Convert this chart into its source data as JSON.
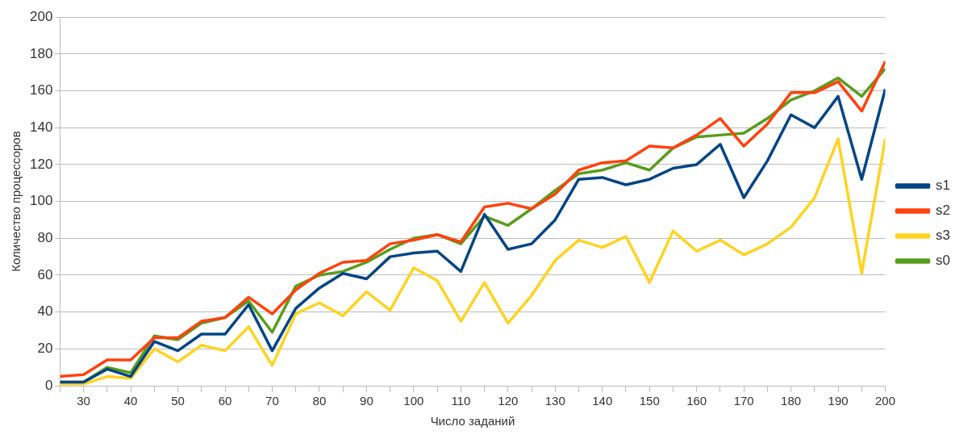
{
  "chart_data": {
    "type": "line",
    "xlabel": "Число заданий",
    "ylabel": "Количество процессоров",
    "x": [
      25,
      30,
      35,
      40,
      45,
      50,
      55,
      60,
      65,
      70,
      75,
      80,
      85,
      90,
      95,
      100,
      105,
      110,
      115,
      120,
      125,
      130,
      135,
      140,
      145,
      150,
      155,
      160,
      165,
      170,
      175,
      180,
      185,
      190,
      195,
      200
    ],
    "xlim": [
      25,
      200
    ],
    "xticks": [
      {
        "value": 25,
        "label": null
      },
      30,
      {
        "value": 35,
        "label": null
      },
      40,
      {
        "value": 45,
        "label": null
      },
      50,
      {
        "value": 55,
        "label": null
      },
      60,
      {
        "value": 65,
        "label": null
      },
      70,
      {
        "value": 75,
        "label": null
      },
      80,
      {
        "value": 85,
        "label": null
      },
      90,
      {
        "value": 95,
        "label": null
      },
      100,
      {
        "value": 105,
        "label": null
      },
      110,
      {
        "value": 115,
        "label": null
      },
      120,
      {
        "value": 125,
        "label": null
      },
      130,
      {
        "value": 135,
        "label": null
      },
      140,
      {
        "value": 145,
        "label": null
      },
      150,
      {
        "value": 155,
        "label": null
      },
      160,
      {
        "value": 165,
        "label": null
      },
      170,
      {
        "value": 175,
        "label": null
      },
      180,
      {
        "value": 185,
        "label": null
      },
      190,
      {
        "value": 195,
        "label": null
      },
      200
    ],
    "ylim": [
      0,
      200
    ],
    "yticks": [
      0,
      20,
      40,
      60,
      80,
      100,
      120,
      140,
      160,
      180,
      200
    ],
    "grid": "y",
    "legend": "right",
    "marker": "none",
    "line_style": "solid",
    "series": [
      {
        "name": "s1",
        "color": "#004586",
        "values": [
          2,
          2,
          9,
          5,
          24,
          19,
          28,
          28,
          44,
          19,
          42,
          53,
          61,
          58,
          70,
          72,
          73,
          62,
          93,
          74,
          77,
          90,
          112,
          113,
          109,
          112,
          118,
          120,
          131,
          102,
          122,
          147,
          140,
          157,
          112,
          161
        ]
      },
      {
        "name": "s2",
        "color": "#ff420e",
        "values": [
          5,
          6,
          14,
          14,
          26,
          26,
          35,
          37,
          48,
          39,
          52,
          61,
          67,
          68,
          77,
          79,
          82,
          78,
          97,
          99,
          96,
          104,
          117,
          121,
          122,
          130,
          129,
          136,
          145,
          130,
          142,
          159,
          159,
          165,
          149,
          176
        ]
      },
      {
        "name": "s3",
        "color": "#ffd320",
        "values": [
          1,
          1,
          5,
          4,
          20,
          13,
          22,
          19,
          32,
          11,
          39,
          45,
          38,
          51,
          41,
          64,
          57,
          35,
          56,
          34,
          49,
          68,
          79,
          75,
          81,
          56,
          84,
          73,
          79,
          71,
          77,
          86,
          102,
          134,
          61,
          134
        ]
      },
      {
        "name": "s0",
        "color": "#579d1c",
        "values": [
          2,
          2,
          10,
          7,
          27,
          25,
          34,
          37,
          46,
          29,
          54,
          60,
          62,
          67,
          74,
          80,
          82,
          77,
          92,
          87,
          96,
          106,
          115,
          117,
          121,
          117,
          129,
          135,
          136,
          137,
          145,
          155,
          160,
          167,
          157,
          172
        ]
      }
    ]
  }
}
